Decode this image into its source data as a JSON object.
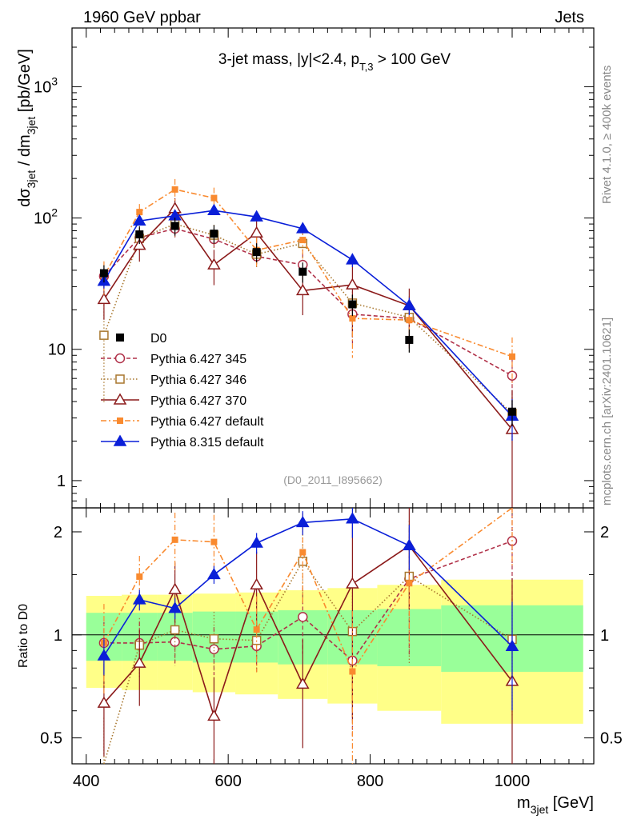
{
  "header": {
    "left": "1960 GeV ppbar",
    "right": "Jets"
  },
  "side": {
    "rivet": "Rivet 4.1.0, ≥ 400k events",
    "mcplots": "mcplots.cern.ch [arXiv:2401.10621]"
  },
  "chart_data": {
    "type": "line",
    "title": "3-jet mass, |y|<2.4, p_T,3 > 100 GeV",
    "title_parts": {
      "main": "3-jet mass, |y|<2.4, p",
      "sub": "T,3",
      "tail": " > 100 GeV"
    },
    "analysis_id": "(D0_2011_I895662)",
    "xlabel": "m_3jet [GeV]",
    "xlabel_parts": {
      "main": "m",
      "sub": "3jet",
      "tail": " [GeV]"
    },
    "ylabel": "dσ_3jet / dm_3jet [pb/GeV]",
    "ylabel_parts": {
      "a": "dσ",
      "asub": "3jet",
      "b": " / dm",
      "bsub": "3jet",
      "c": " [pb/GeV]"
    },
    "ratio_ylabel": "Ratio to D0",
    "xlim": [
      380,
      1115
    ],
    "ylim": [
      0.62,
      2800
    ],
    "ratio_ylim": [
      0.42,
      2.35
    ],
    "x_ticks": [
      {
        "v": 400,
        "label": "400"
      },
      {
        "v": 600,
        "label": "600"
      },
      {
        "v": 800,
        "label": "800"
      },
      {
        "v": 1000,
        "label": "1000"
      }
    ],
    "y_ticks": [
      {
        "v": 1,
        "label": "1"
      },
      {
        "v": 10,
        "label": "10"
      },
      {
        "v": 100,
        "label": "10",
        "exp": "2"
      },
      {
        "v": 1000,
        "label": "10",
        "exp": "3"
      }
    ],
    "ratio_ticks": [
      {
        "v": 0.5,
        "label": "0.5"
      },
      {
        "v": 1,
        "label": "1"
      },
      {
        "v": 2,
        "label": "2"
      }
    ],
    "x": [
      425,
      475,
      525,
      580,
      640,
      705,
      775,
      855,
      1000
    ],
    "bins": [
      [
        400,
        450
      ],
      [
        450,
        500
      ],
      [
        500,
        550
      ],
      [
        550,
        610
      ],
      [
        610,
        670
      ],
      [
        670,
        740
      ],
      [
        740,
        810
      ],
      [
        810,
        900
      ],
      [
        900,
        1100
      ]
    ],
    "data": {
      "name": "D0",
      "values": [
        38,
        75,
        87,
        76,
        55,
        39,
        22,
        11.8,
        3.35
      ],
      "band_inner": [
        0.16,
        0.16,
        0.16,
        0.17,
        0.17,
        0.18,
        0.18,
        0.19,
        0.22
      ],
      "band_outer": [
        0.3,
        0.31,
        0.31,
        0.32,
        0.33,
        0.35,
        0.37,
        0.4,
        0.45
      ]
    },
    "series": [
      {
        "name": "Pythia 6.427 345",
        "color": "#b03048",
        "marker": "circle-open",
        "dash": "5,3",
        "values": [
          36,
          71,
          83,
          69,
          51,
          44,
          18.5,
          17.2,
          6.3
        ],
        "err": [
          0.15,
          0.15,
          0.15,
          0.16,
          0.17,
          0.22,
          0.4,
          0.4,
          0.35
        ]
      },
      {
        "name": "Pythia 6.427 346",
        "color": "#a8772e",
        "marker": "square-open",
        "dash": "1.5,2.5",
        "values": [
          12.8,
          70,
          90,
          74,
          53,
          64,
          22.5,
          17.5,
          3.25
        ],
        "err": [
          0.7,
          0.2,
          0.2,
          0.2,
          0.2,
          0.25,
          0.45,
          0.45,
          0.4
        ]
      },
      {
        "name": "Pythia 6.427 370",
        "color": "#8b1a1a",
        "marker": "triangle-open",
        "dash": "",
        "values": [
          24,
          62,
          118,
          44,
          77,
          28,
          31,
          21.5,
          2.45
        ],
        "err": [
          0.3,
          0.25,
          0.2,
          0.3,
          0.25,
          0.35,
          0.6,
          0.35,
          1.0
        ]
      },
      {
        "name": "Pythia 6.427 default",
        "color": "#f98a2f",
        "marker": "square-filled",
        "dash": "7,3,2,3",
        "values": [
          36,
          111,
          165,
          142,
          57,
          68,
          17.2,
          16.7,
          8.8
        ],
        "err": [
          0.3,
          0.15,
          0.2,
          0.2,
          0.25,
          0.3,
          0.5,
          0.35,
          0.4
        ]
      },
      {
        "name": "Pythia 8.315 default",
        "color": "#0a1fd8",
        "marker": "triangle-filled",
        "dash": "",
        "values": [
          33,
          95,
          104,
          114,
          102,
          83,
          48,
          21.5,
          3.1
        ],
        "err": [
          0.12,
          0.07,
          0.07,
          0.06,
          0.07,
          0.08,
          0.12,
          0.15,
          0.35
        ]
      }
    ]
  }
}
